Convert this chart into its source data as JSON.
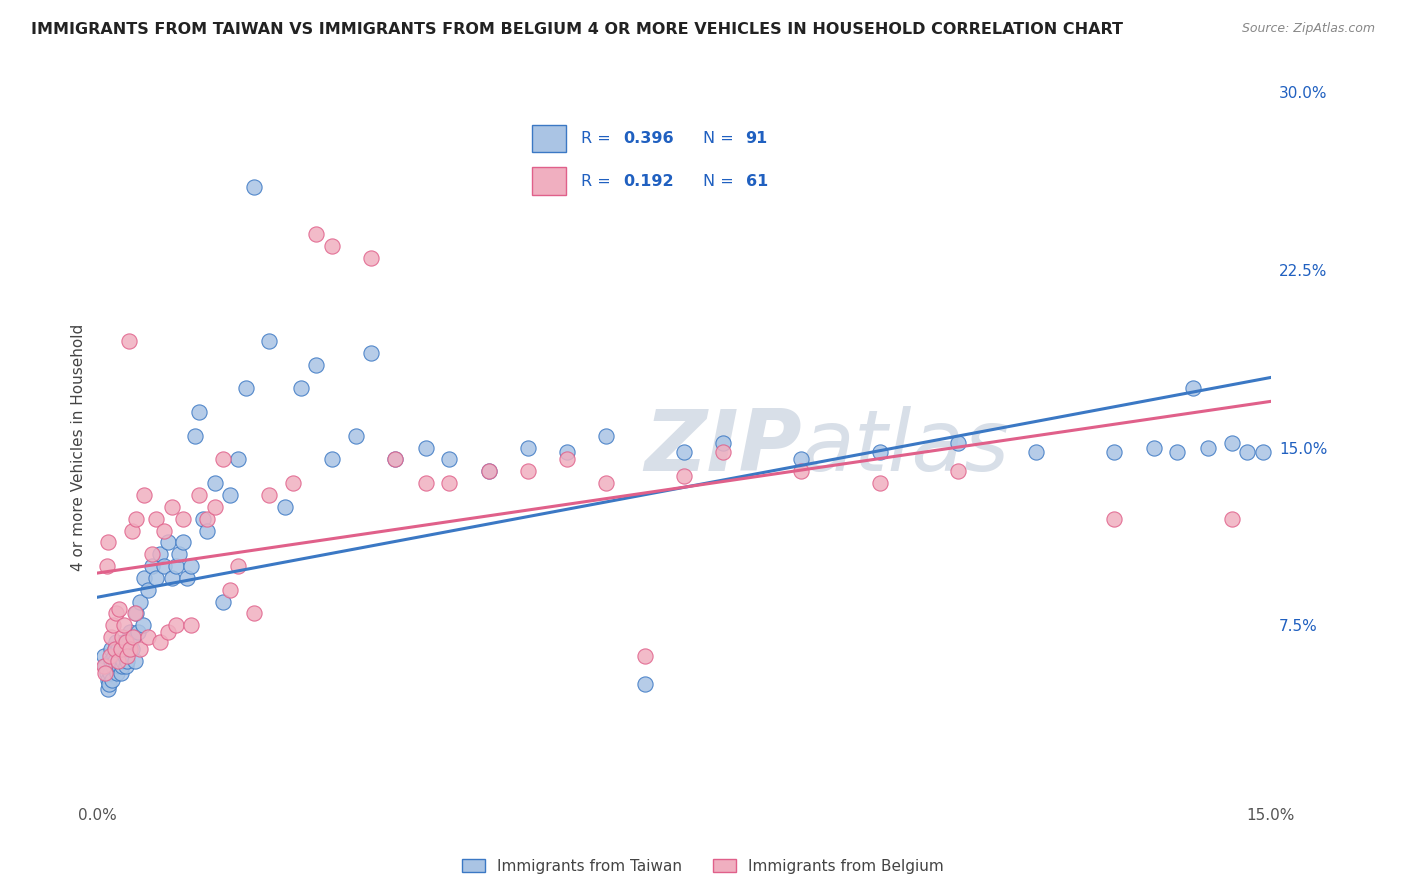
{
  "title": "IMMIGRANTS FROM TAIWAN VS IMMIGRANTS FROM BELGIUM 4 OR MORE VEHICLES IN HOUSEHOLD CORRELATION CHART",
  "source": "Source: ZipAtlas.com",
  "ylabel": "4 or more Vehicles in Household",
  "xlim": [
    0.0,
    0.15
  ],
  "ylim": [
    0.0,
    0.3
  ],
  "yticks_right": [
    0.075,
    0.15,
    0.225,
    0.3
  ],
  "ytick_labels_right": [
    "7.5%",
    "15.0%",
    "22.5%",
    "30.0%"
  ],
  "taiwan_R": 0.396,
  "taiwan_N": 91,
  "belgium_R": 0.192,
  "belgium_N": 61,
  "taiwan_color": "#aac4e4",
  "taiwan_line_color": "#3b78c4",
  "belgium_color": "#f0afc0",
  "belgium_line_color": "#e0608a",
  "legend_color": "#2060c0",
  "background_color": "#ffffff",
  "grid_color": "#d0d8e8",
  "watermark_color": "#d8dfe8",
  "taiwan_x": [
    0.0008,
    0.001,
    0.0012,
    0.0013,
    0.0014,
    0.0015,
    0.0016,
    0.0017,
    0.0018,
    0.0019,
    0.002,
    0.0021,
    0.0022,
    0.0023,
    0.0024,
    0.0025,
    0.0026,
    0.0027,
    0.0028,
    0.0029,
    0.003,
    0.0031,
    0.0032,
    0.0033,
    0.0034,
    0.0035,
    0.0036,
    0.0037,
    0.0038,
    0.0039,
    0.004,
    0.0042,
    0.0044,
    0.0046,
    0.0048,
    0.005,
    0.0052,
    0.0055,
    0.0058,
    0.006,
    0.0065,
    0.007,
    0.0075,
    0.008,
    0.0085,
    0.009,
    0.0095,
    0.01,
    0.0105,
    0.011,
    0.0115,
    0.012,
    0.0125,
    0.013,
    0.0135,
    0.014,
    0.015,
    0.016,
    0.017,
    0.018,
    0.019,
    0.02,
    0.022,
    0.024,
    0.026,
    0.028,
    0.03,
    0.033,
    0.035,
    0.038,
    0.042,
    0.045,
    0.05,
    0.055,
    0.06,
    0.065,
    0.07,
    0.075,
    0.08,
    0.09,
    0.1,
    0.11,
    0.12,
    0.13,
    0.135,
    0.138,
    0.14,
    0.142,
    0.145,
    0.147,
    0.149
  ],
  "taiwan_y": [
    0.062,
    0.058,
    0.055,
    0.052,
    0.048,
    0.05,
    0.055,
    0.06,
    0.065,
    0.052,
    0.058,
    0.062,
    0.065,
    0.06,
    0.068,
    0.055,
    0.06,
    0.065,
    0.058,
    0.062,
    0.055,
    0.058,
    0.065,
    0.06,
    0.068,
    0.062,
    0.065,
    0.058,
    0.06,
    0.065,
    0.068,
    0.072,
    0.065,
    0.07,
    0.06,
    0.08,
    0.072,
    0.085,
    0.075,
    0.095,
    0.09,
    0.1,
    0.095,
    0.105,
    0.1,
    0.11,
    0.095,
    0.1,
    0.105,
    0.11,
    0.095,
    0.1,
    0.155,
    0.165,
    0.12,
    0.115,
    0.135,
    0.085,
    0.13,
    0.145,
    0.175,
    0.26,
    0.195,
    0.125,
    0.175,
    0.185,
    0.145,
    0.155,
    0.19,
    0.145,
    0.15,
    0.145,
    0.14,
    0.15,
    0.148,
    0.155,
    0.05,
    0.148,
    0.152,
    0.145,
    0.148,
    0.152,
    0.148,
    0.148,
    0.15,
    0.148,
    0.175,
    0.15,
    0.152,
    0.148,
    0.148
  ],
  "belgium_x": [
    0.0008,
    0.001,
    0.0012,
    0.0014,
    0.0016,
    0.0018,
    0.002,
    0.0022,
    0.0024,
    0.0026,
    0.0028,
    0.003,
    0.0032,
    0.0034,
    0.0036,
    0.0038,
    0.004,
    0.0042,
    0.0044,
    0.0046,
    0.0048,
    0.005,
    0.0055,
    0.006,
    0.0065,
    0.007,
    0.0075,
    0.008,
    0.0085,
    0.009,
    0.0095,
    0.01,
    0.011,
    0.012,
    0.013,
    0.014,
    0.015,
    0.016,
    0.017,
    0.018,
    0.02,
    0.022,
    0.025,
    0.028,
    0.03,
    0.035,
    0.038,
    0.042,
    0.045,
    0.05,
    0.055,
    0.06,
    0.065,
    0.07,
    0.075,
    0.08,
    0.09,
    0.1,
    0.11,
    0.13,
    0.145
  ],
  "belgium_y": [
    0.058,
    0.055,
    0.1,
    0.11,
    0.062,
    0.07,
    0.075,
    0.065,
    0.08,
    0.06,
    0.082,
    0.065,
    0.07,
    0.075,
    0.068,
    0.062,
    0.195,
    0.065,
    0.115,
    0.07,
    0.08,
    0.12,
    0.065,
    0.13,
    0.07,
    0.105,
    0.12,
    0.068,
    0.115,
    0.072,
    0.125,
    0.075,
    0.12,
    0.075,
    0.13,
    0.12,
    0.125,
    0.145,
    0.09,
    0.1,
    0.08,
    0.13,
    0.135,
    0.24,
    0.235,
    0.23,
    0.145,
    0.135,
    0.135,
    0.14,
    0.14,
    0.145,
    0.135,
    0.062,
    0.138,
    0.148,
    0.14,
    0.135,
    0.14,
    0.12,
    0.12
  ]
}
